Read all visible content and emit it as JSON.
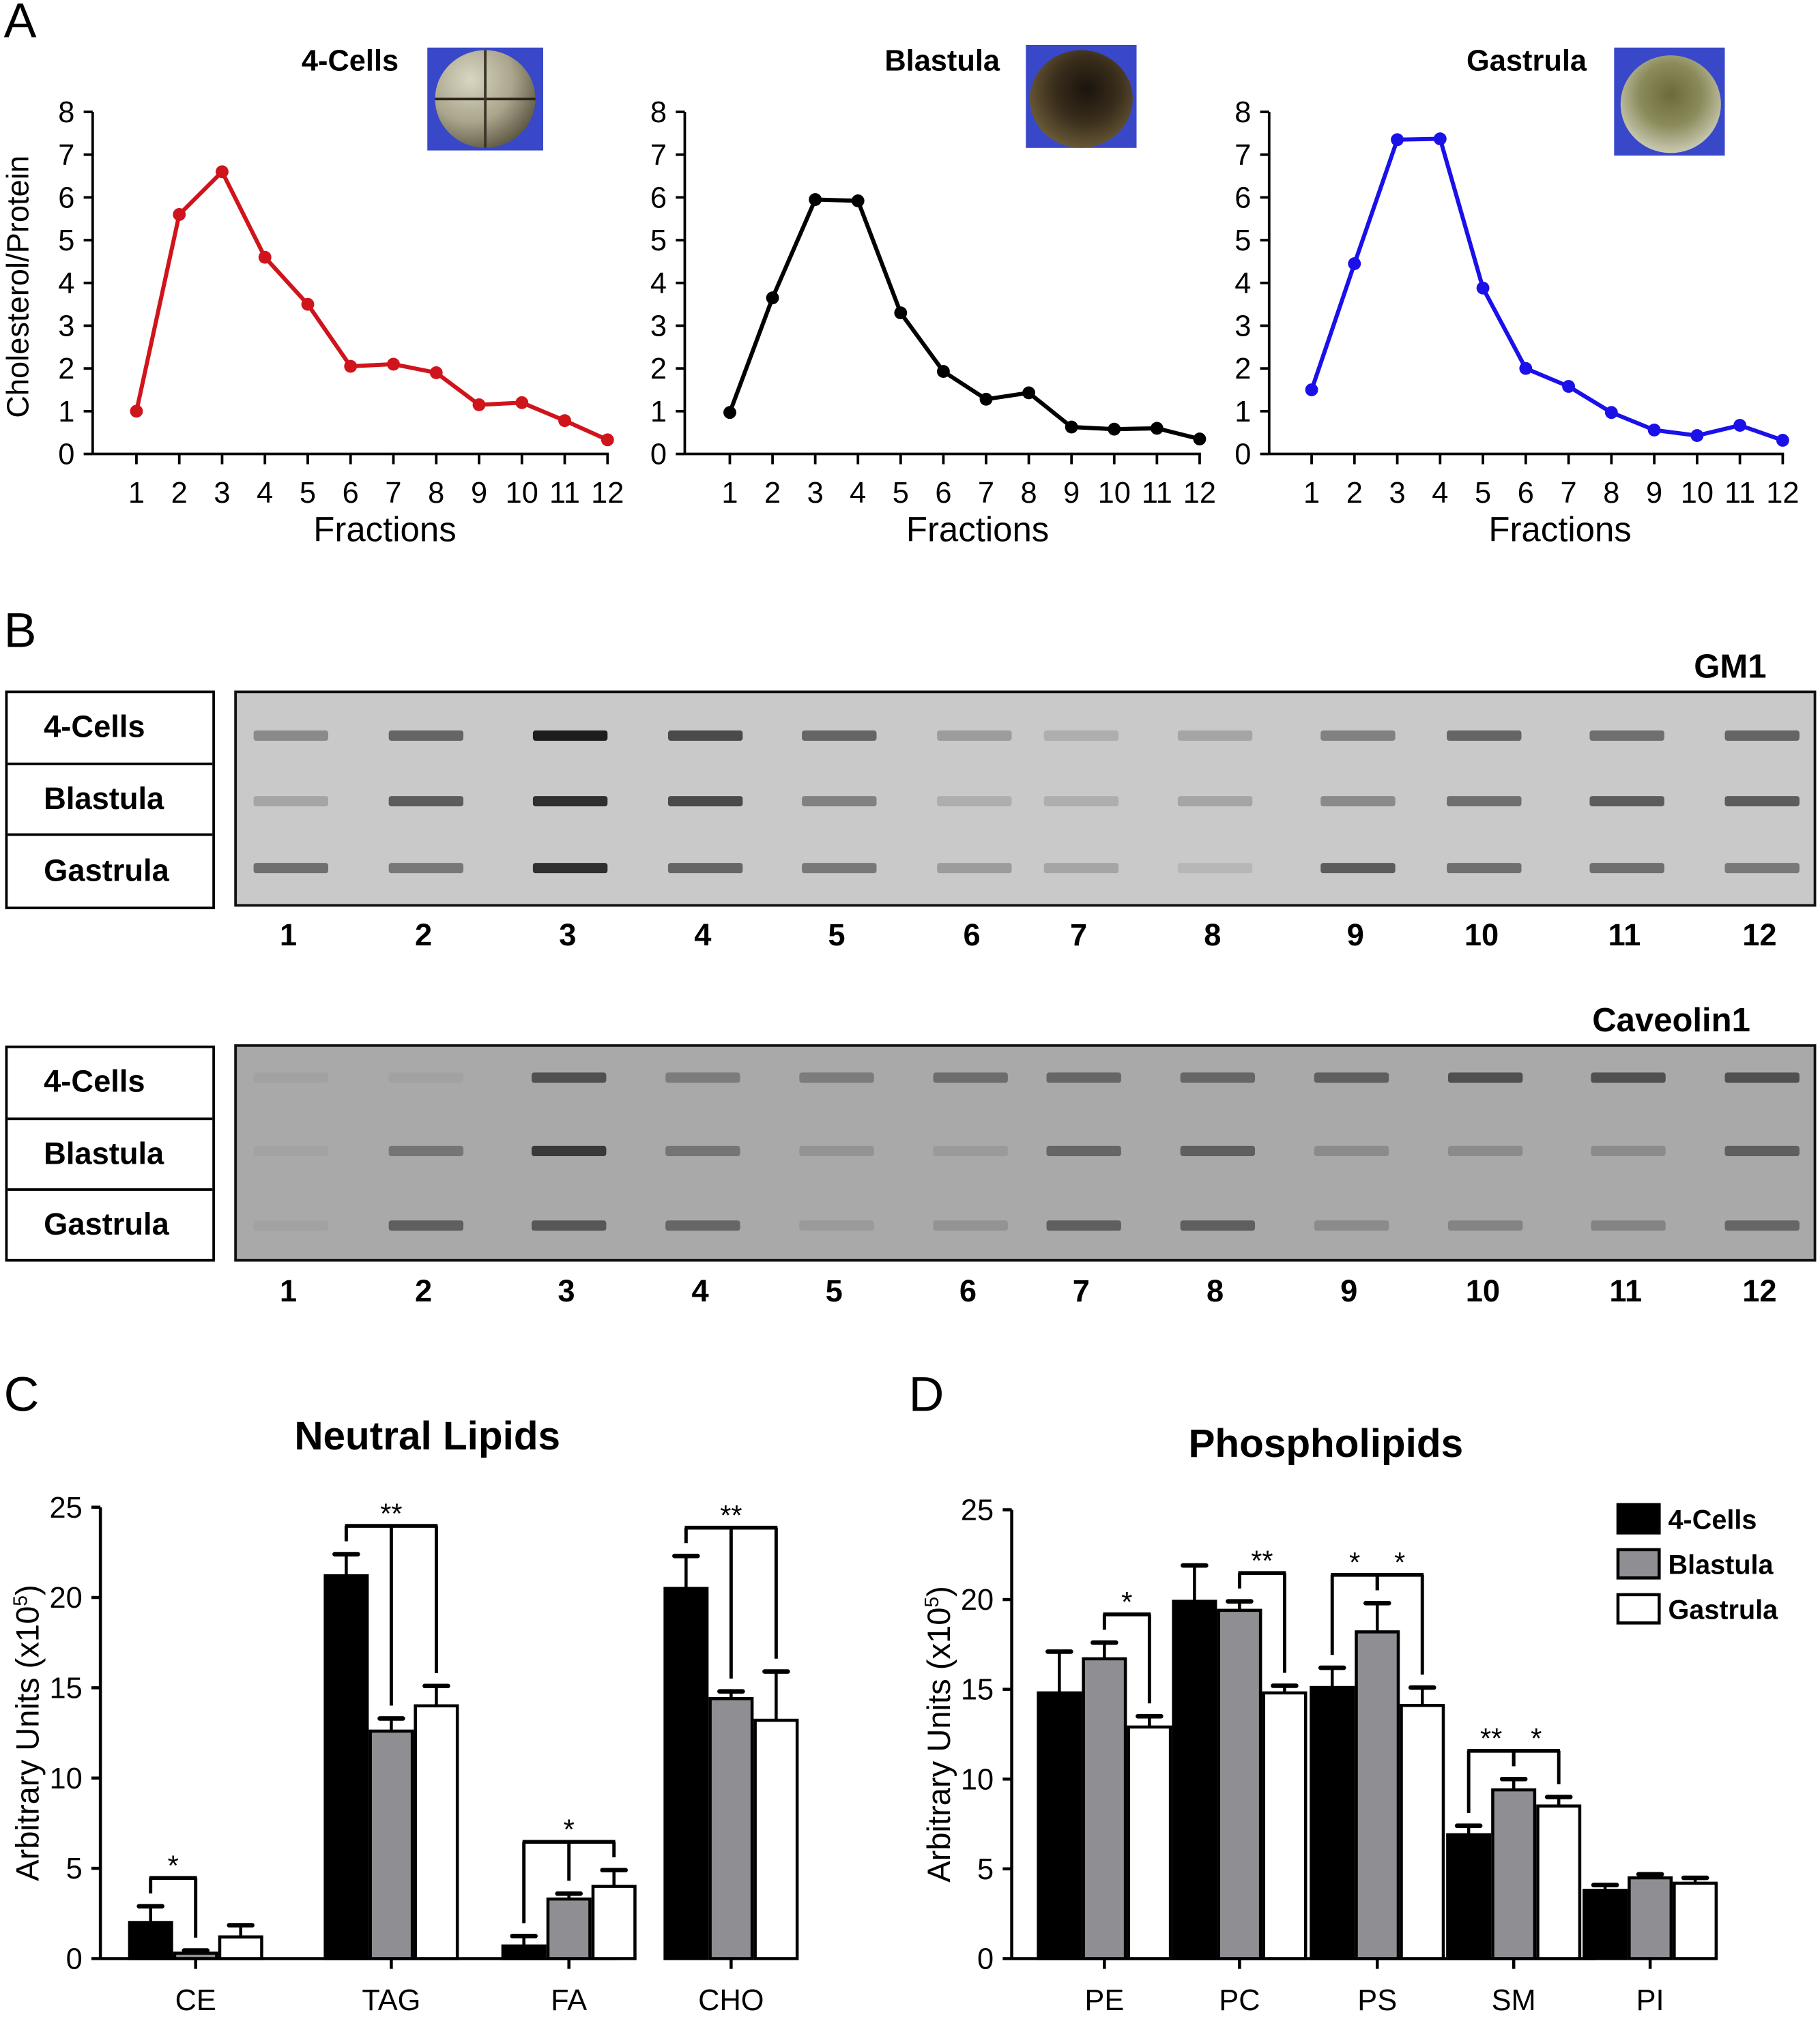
{
  "panel_letters": {
    "a": "A",
    "b": "B",
    "c": "C",
    "d": "D"
  },
  "colors": {
    "four_cells_line": "#d0141c",
    "blastula_line": "#000000",
    "gastrula_line": "#1a10e8",
    "bar_four_cells": "#000000",
    "bar_blastula": "#8e8e93",
    "bar_gastrula": "#ffffff",
    "embryo_bg": "#3848c8"
  },
  "chart_data": [
    {
      "id": "A1",
      "type": "line",
      "title": "4-Cells",
      "xlabel": "Fractions",
      "ylabel": "Cholesterol/Protein",
      "x": [
        1,
        2,
        3,
        4,
        5,
        6,
        7,
        8,
        9,
        10,
        11,
        12
      ],
      "series": [
        {
          "name": "4-Cells",
          "values": [
            1.0,
            5.6,
            6.6,
            4.6,
            3.5,
            2.05,
            2.1,
            1.9,
            1.15,
            1.2,
            0.78,
            0.33
          ]
        }
      ],
      "ylim": [
        0,
        8
      ],
      "yticks": [
        0,
        1,
        2,
        3,
        4,
        5,
        6,
        7,
        8
      ],
      "grid": false,
      "color_key": "four_cells_line"
    },
    {
      "id": "A2",
      "type": "line",
      "title": "Blastula",
      "xlabel": "Fractions",
      "ylabel": "",
      "x": [
        1,
        2,
        3,
        4,
        5,
        6,
        7,
        8,
        9,
        10,
        11,
        12
      ],
      "series": [
        {
          "name": "Blastula",
          "values": [
            0.97,
            3.65,
            5.95,
            5.92,
            3.3,
            1.93,
            1.28,
            1.43,
            0.63,
            0.58,
            0.6,
            0.35
          ]
        }
      ],
      "ylim": [
        0,
        8
      ],
      "yticks": [
        0,
        1,
        2,
        3,
        4,
        5,
        6,
        7,
        8
      ],
      "grid": false,
      "color_key": "blastula_line"
    },
    {
      "id": "A3",
      "type": "line",
      "title": "Gastrula",
      "xlabel": "Fractions",
      "ylabel": "",
      "x": [
        1,
        2,
        3,
        4,
        5,
        6,
        7,
        8,
        9,
        10,
        11,
        12
      ],
      "series": [
        {
          "name": "Gastrula",
          "values": [
            1.5,
            4.45,
            7.35,
            7.37,
            3.88,
            2.0,
            1.58,
            0.97,
            0.56,
            0.43,
            0.67,
            0.32
          ]
        }
      ],
      "ylim": [
        0,
        8
      ],
      "yticks": [
        0,
        1,
        2,
        3,
        4,
        5,
        6,
        7,
        8
      ],
      "grid": false,
      "color_key": "gastrula_line"
    },
    {
      "id": "C",
      "type": "bar",
      "title": "Neutral Lipids",
      "xlabel": "",
      "ylabel": "Arbitrary Units (x10",
      "ylabel_sup": "5",
      "ylabel_close": ")",
      "categories": [
        "CE",
        "TAG",
        "FA",
        "CHO"
      ],
      "series": [
        {
          "name": "4-Cells",
          "values": [
            2.0,
            21.2,
            0.7,
            20.5
          ],
          "errors": [
            0.9,
            1.2,
            0.55,
            1.8
          ]
        },
        {
          "name": "Blastula",
          "values": [
            0.3,
            12.6,
            3.3,
            14.4
          ],
          "errors": [
            0.15,
            0.7,
            0.3,
            0.4
          ]
        },
        {
          "name": "Gastrula",
          "values": [
            1.2,
            14.0,
            4.0,
            13.2
          ],
          "errors": [
            0.65,
            1.1,
            0.9,
            2.7
          ]
        }
      ],
      "ylim": [
        0,
        25
      ],
      "yticks": [
        0,
        5,
        10,
        15,
        20,
        25
      ],
      "significance": [
        {
          "category": "CE",
          "label": "*",
          "pairs": [
            [
              0,
              1
            ]
          ]
        },
        {
          "category": "TAG",
          "label": "**",
          "pairs": [
            [
              0,
              1
            ],
            [
              0,
              2
            ]
          ]
        },
        {
          "category": "FA",
          "label": "*",
          "pairs": [
            [
              0,
              1
            ],
            [
              0,
              2
            ]
          ]
        },
        {
          "category": "CHO",
          "label": "**",
          "pairs": [
            [
              0,
              1
            ],
            [
              0,
              2
            ]
          ]
        }
      ]
    },
    {
      "id": "D",
      "type": "bar",
      "title": "Phospholipids",
      "xlabel": "",
      "ylabel": "Arbitrary Units (x10",
      "ylabel_sup": "5",
      "ylabel_close": ")",
      "categories": [
        "PE",
        "PC",
        "PS",
        "SM",
        "PI"
      ],
      "series": [
        {
          "name": "4-Cells",
          "values": [
            14.8,
            19.9,
            15.1,
            6.9,
            3.8
          ],
          "errors": [
            2.3,
            2.0,
            1.1,
            0.5,
            0.3
          ]
        },
        {
          "name": "Blastula",
          "values": [
            16.7,
            19.4,
            18.2,
            9.4,
            4.5
          ],
          "errors": [
            0.9,
            0.5,
            1.6,
            0.6,
            0.2
          ]
        },
        {
          "name": "Gastrula",
          "values": [
            12.9,
            14.8,
            14.1,
            8.5,
            4.2
          ],
          "errors": [
            0.6,
            0.4,
            1.0,
            0.5,
            0.3
          ]
        }
      ],
      "ylim": [
        0,
        25
      ],
      "yticks": [
        0,
        5,
        10,
        15,
        20,
        25
      ],
      "legend": {
        "position": "top-right",
        "entries": [
          "4-Cells",
          "Blastula",
          "Gastrula"
        ]
      },
      "significance": [
        {
          "category": "PE",
          "label": "*",
          "pairs": [
            [
              1,
              2
            ]
          ]
        },
        {
          "category": "PC",
          "label": "**",
          "pairs": [
            [
              1,
              2
            ]
          ]
        },
        {
          "category": "PS",
          "label": "*",
          "pairs": [
            [
              0,
              1
            ]
          ]
        },
        {
          "category": "PS",
          "label": "*",
          "pairs": [
            [
              1,
              2
            ]
          ]
        },
        {
          "category": "SM",
          "label": "**",
          "pairs": [
            [
              0,
              1
            ]
          ]
        },
        {
          "category": "SM",
          "label": "*",
          "pairs": [
            [
              1,
              2
            ]
          ]
        }
      ]
    }
  ],
  "blots": [
    {
      "title": "GM1",
      "rows": [
        "4-Cells",
        "Blastula",
        "Gastrula"
      ],
      "lanes": [
        "1",
        "2",
        "3",
        "4",
        "5",
        "6",
        "7",
        "8",
        "9",
        "10",
        "11",
        "12"
      ],
      "band_intensity": [
        [
          0.35,
          0.55,
          0.95,
          0.7,
          0.55,
          0.25,
          0.15,
          0.2,
          0.4,
          0.55,
          0.5,
          0.55
        ],
        [
          0.2,
          0.6,
          0.85,
          0.7,
          0.4,
          0.15,
          0.15,
          0.2,
          0.35,
          0.5,
          0.6,
          0.6
        ],
        [
          0.5,
          0.45,
          0.85,
          0.55,
          0.45,
          0.25,
          0.2,
          0.1,
          0.6,
          0.5,
          0.5,
          0.45
        ]
      ]
    },
    {
      "title": "Caveolin1",
      "rows": [
        "4-Cells",
        "Blastula",
        "Gastrula"
      ],
      "lanes": [
        "1",
        "2",
        "3",
        "4",
        "5",
        "6",
        "7",
        "8",
        "9",
        "10",
        "11",
        "12"
      ],
      "band_intensity": [
        [
          0.05,
          0.05,
          0.6,
          0.3,
          0.3,
          0.4,
          0.45,
          0.45,
          0.5,
          0.6,
          0.6,
          0.6
        ],
        [
          0.05,
          0.35,
          0.75,
          0.35,
          0.15,
          0.1,
          0.45,
          0.5,
          0.2,
          0.2,
          0.2,
          0.5
        ],
        [
          0.05,
          0.5,
          0.55,
          0.45,
          0.1,
          0.15,
          0.5,
          0.5,
          0.2,
          0.25,
          0.25,
          0.45
        ]
      ]
    }
  ]
}
